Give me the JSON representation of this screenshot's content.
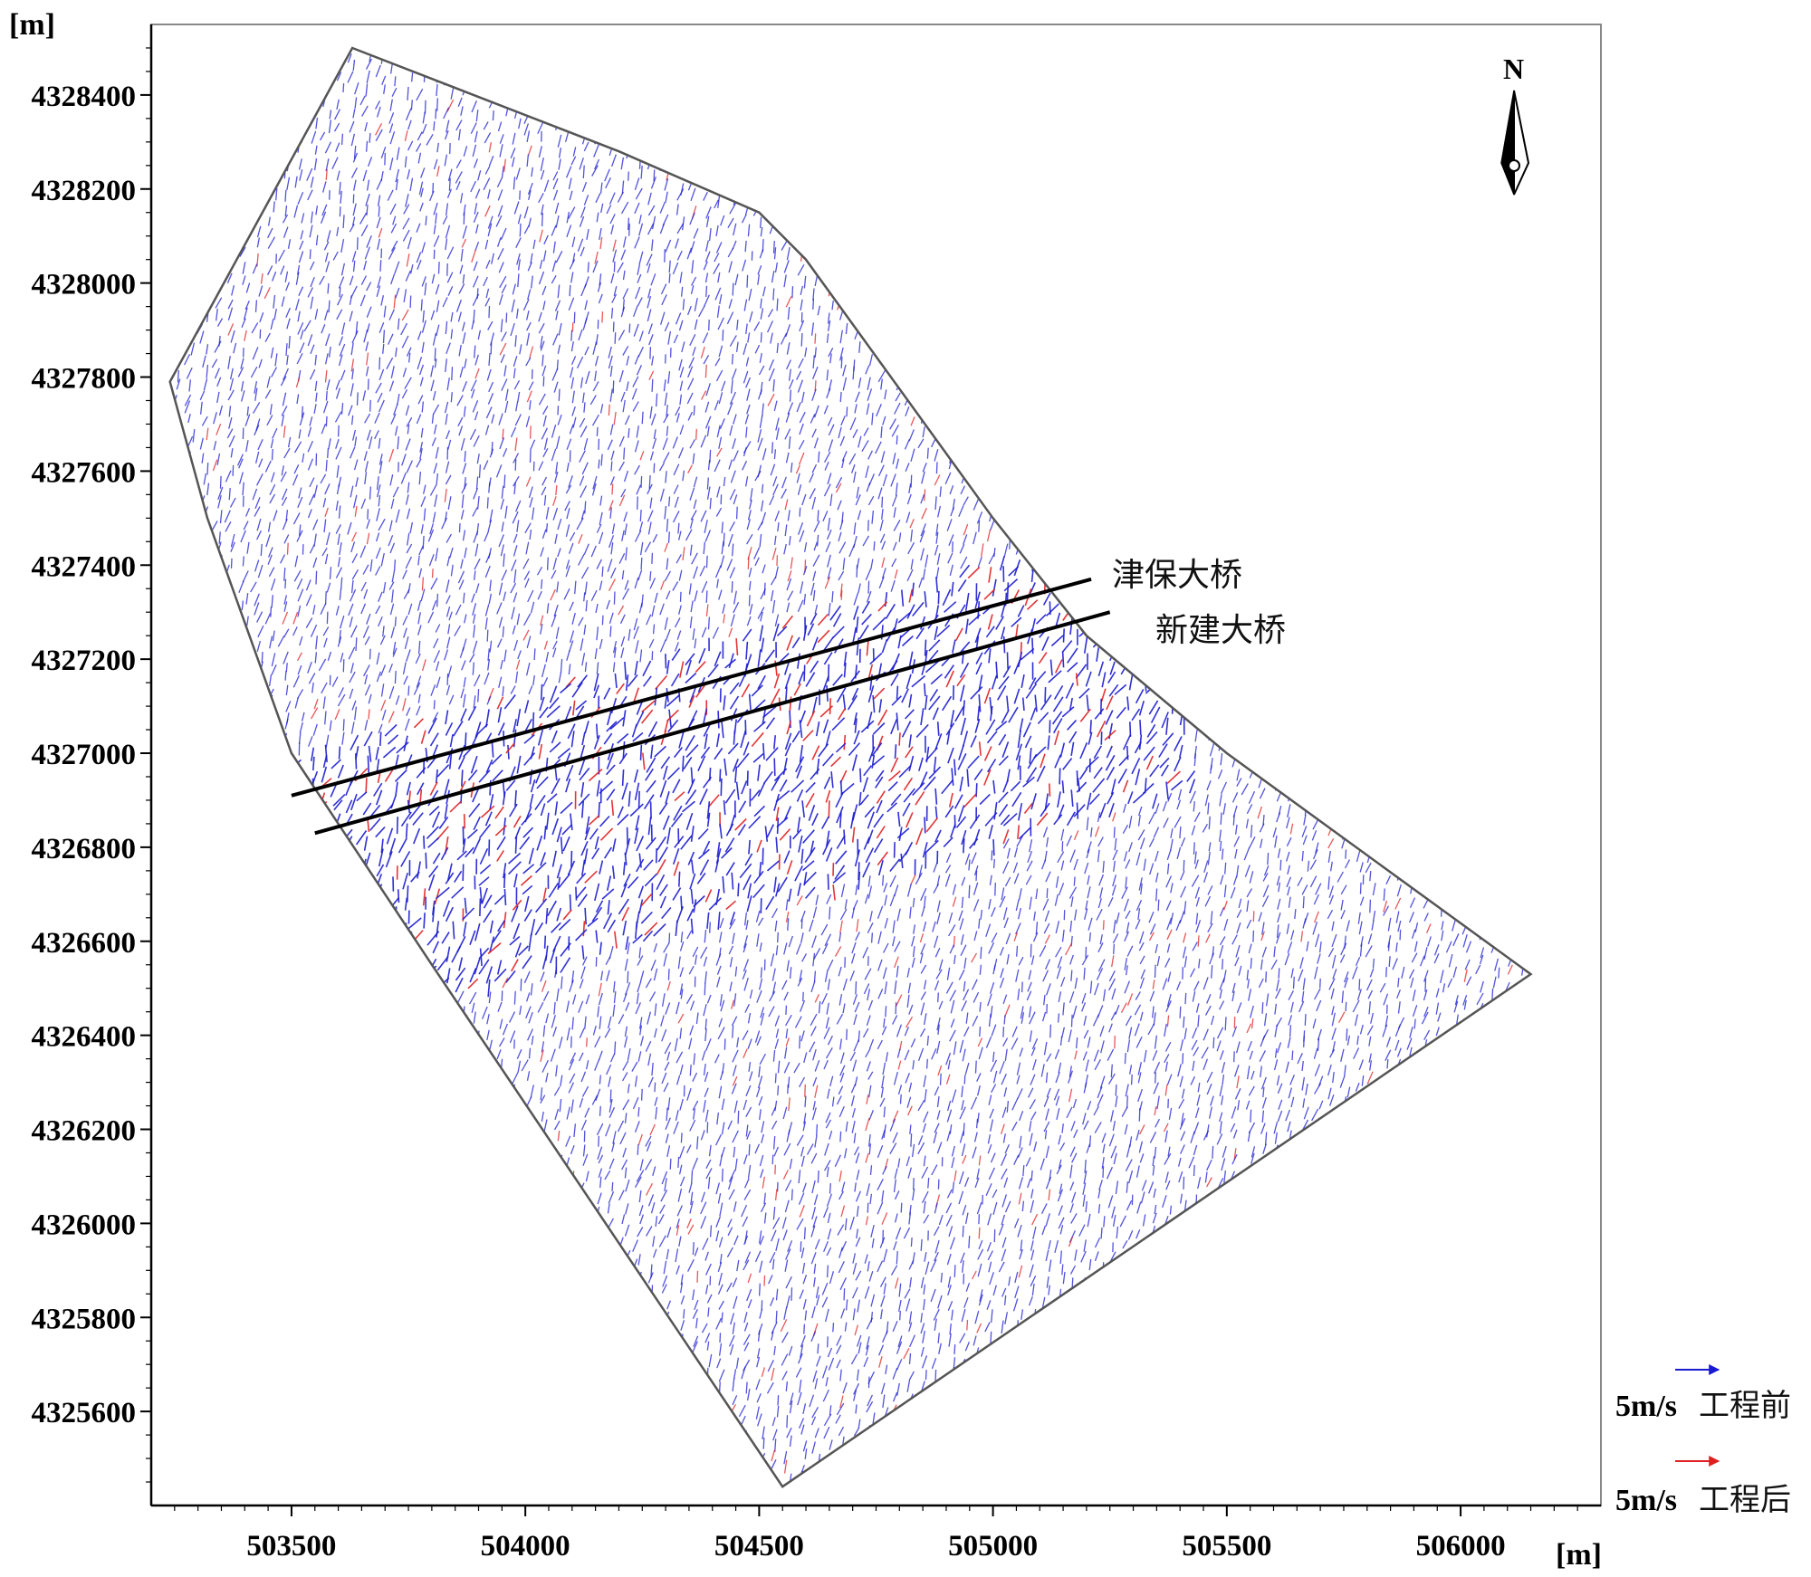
{
  "chart_data": {
    "type": "vector-field",
    "title": "",
    "x_unit_label": "[m]",
    "y_unit_label": "[m]",
    "xlim": [
      503200,
      506300
    ],
    "ylim": [
      4325400,
      4328550
    ],
    "x_ticks": [
      503500,
      504000,
      504500,
      505000,
      505500,
      506000
    ],
    "y_ticks": [
      4325600,
      4325800,
      4326000,
      4326200,
      4326400,
      4326600,
      4326800,
      4327000,
      4327200,
      4327400,
      4327600,
      4327800,
      4328000,
      4328200,
      4328400
    ],
    "domain_boundary": [
      [
        503630,
        4328500
      ],
      [
        504200,
        4328280
      ],
      [
        504500,
        4328150
      ],
      [
        504600,
        4328050
      ],
      [
        505000,
        4327500
      ],
      [
        505200,
        4327250
      ],
      [
        505500,
        4327000
      ],
      [
        506150,
        4326530
      ],
      [
        504550,
        4325440
      ],
      [
        503800,
        4326550
      ],
      [
        503500,
        4327000
      ],
      [
        503320,
        4327500
      ],
      [
        503240,
        4327790
      ]
    ],
    "bridges": [
      {
        "name": "津保大桥",
        "line": [
          [
            503500,
            4326910
          ],
          [
            505210,
            4327370
          ]
        ]
      },
      {
        "name": "新建大桥",
        "line": [
          [
            503550,
            4326830
          ],
          [
            505250,
            4327300
          ]
        ]
      }
    ],
    "series": [
      {
        "name": "工程前",
        "color": "#1a1ad0"
      },
      {
        "name": "工程后",
        "color": "#e02020"
      }
    ],
    "legend": [
      {
        "scale_label": "5m/s",
        "text": "工程前",
        "color": "#1a1ad0"
      },
      {
        "scale_label": "5m/s",
        "text": "工程后",
        "color": "#e02020"
      }
    ],
    "legend_position": "bottom-right outside plot",
    "north_arrow_label": "N",
    "grid": false
  }
}
